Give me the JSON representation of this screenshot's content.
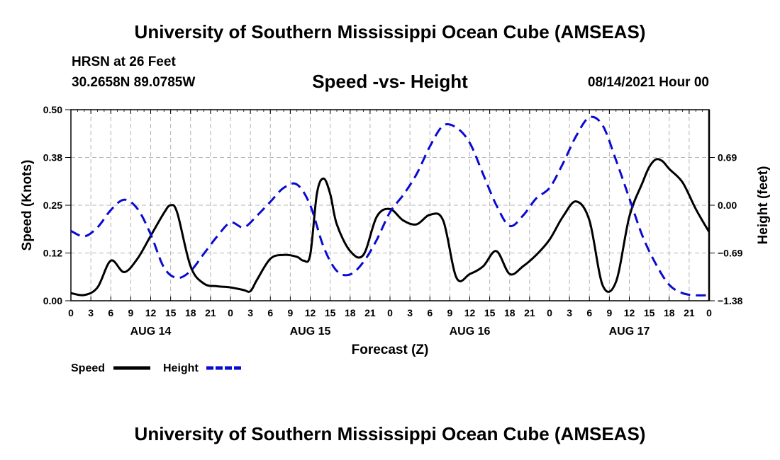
{
  "header": {
    "title": "University of Southern Mississippi Ocean Cube (AMSEAS)",
    "station": "HRSN at 26 Feet",
    "coords": "30.2658N  89.0785W",
    "subtitle": "Speed -vs- Height",
    "datestamp": "08/14/2021 Hour 00"
  },
  "footer": {
    "title": "University of Southern Mississippi Ocean Cube (AMSEAS)"
  },
  "colors": {
    "speed": "#000000",
    "height": "#0a0ad0",
    "grid": "#b4b4b4"
  },
  "chart_data": {
    "type": "line",
    "title": "Speed -vs- Height",
    "xlabel": "Forecast (Z)",
    "ylabel": "Speed (Knots)",
    "ylabel_right": "Height (feet)",
    "xlim": [
      0,
      96
    ],
    "ylim": [
      0,
      0.5
    ],
    "ylim_right": [
      -1.38,
      1.38
    ],
    "grid": true,
    "x_ticks": [
      0,
      3,
      6,
      9,
      12,
      15,
      18,
      21,
      24,
      27,
      30,
      33,
      36,
      39,
      42,
      45,
      48,
      51,
      54,
      57,
      60,
      63,
      66,
      69,
      72,
      75,
      78,
      81,
      84,
      87,
      90,
      93,
      96
    ],
    "x_tick_labels": [
      "0",
      "3",
      "6",
      "9",
      "12",
      "15",
      "18",
      "21",
      "0",
      "3",
      "6",
      "9",
      "12",
      "15",
      "18",
      "21",
      "0",
      "3",
      "6",
      "9",
      "12",
      "15",
      "18",
      "21",
      "0",
      "3",
      "6",
      "9",
      "12",
      "15",
      "18",
      "21",
      "0"
    ],
    "day_labels": [
      {
        "x": 12,
        "label": "AUG 14"
      },
      {
        "x": 36,
        "label": "AUG 15"
      },
      {
        "x": 60,
        "label": "AUG 16"
      },
      {
        "x": 84,
        "label": "AUG 17"
      }
    ],
    "y_ticks": [
      0,
      0.125,
      0.25,
      0.375,
      0.5
    ],
    "y_tick_labels": [
      "0.00",
      "0.12",
      "0.25",
      "0.38",
      "0.50"
    ],
    "y_ticks_right": [
      -1.38,
      -0.69,
      0.0,
      0.69
    ],
    "y_tick_labels_right": [
      "−1.38",
      "−0.69",
      "0.00",
      "0.69"
    ],
    "legend": [
      {
        "name": "Speed",
        "style": "solid"
      },
      {
        "name": "Height",
        "style": "dashed"
      }
    ],
    "series": [
      {
        "name": "Speed",
        "axis": "left",
        "x": [
          0,
          2,
          4,
          6,
          8,
          10,
          12,
          14,
          15,
          16,
          18,
          20,
          22,
          24,
          26,
          27,
          28,
          30,
          32,
          34,
          35,
          36,
          37,
          38,
          39,
          40,
          42,
          44,
          46,
          48,
          50,
          52,
          54,
          56,
          58,
          60,
          62,
          64,
          66,
          68,
          70,
          72,
          74,
          76,
          78,
          80,
          82,
          84,
          86,
          87,
          88,
          89,
          90,
          92,
          94,
          96
        ],
        "y": [
          0.02,
          0.015,
          0.035,
          0.105,
          0.075,
          0.11,
          0.17,
          0.23,
          0.25,
          0.23,
          0.09,
          0.045,
          0.038,
          0.035,
          0.028,
          0.025,
          0.055,
          0.11,
          0.12,
          0.115,
          0.105,
          0.12,
          0.28,
          0.32,
          0.28,
          0.2,
          0.13,
          0.12,
          0.22,
          0.24,
          0.21,
          0.2,
          0.225,
          0.21,
          0.06,
          0.07,
          0.09,
          0.13,
          0.07,
          0.09,
          0.12,
          0.16,
          0.22,
          0.26,
          0.21,
          0.04,
          0.05,
          0.22,
          0.31,
          0.35,
          0.37,
          0.365,
          0.345,
          0.31,
          0.24,
          0.18
        ]
      },
      {
        "name": "Height",
        "axis": "right",
        "x": [
          0,
          2,
          4,
          6,
          8,
          10,
          12,
          14,
          16,
          18,
          20,
          22,
          24,
          26,
          28,
          30,
          32,
          34,
          36,
          38,
          40,
          42,
          44,
          46,
          48,
          50,
          52,
          54,
          56,
          58,
          60,
          62,
          64,
          66,
          68,
          70,
          72,
          74,
          76,
          78,
          80,
          82,
          84,
          86,
          88,
          90,
          92,
          94,
          96
        ],
        "y": [
          -0.37,
          -0.45,
          -0.32,
          -0.07,
          0.08,
          -0.05,
          -0.42,
          -0.9,
          -1.05,
          -0.95,
          -0.7,
          -0.45,
          -0.25,
          -0.32,
          -0.15,
          0.05,
          0.25,
          0.3,
          0.0,
          -0.6,
          -0.95,
          -1.0,
          -0.82,
          -0.5,
          -0.1,
          0.15,
          0.45,
          0.85,
          1.15,
          1.12,
          0.9,
          0.45,
          0.0,
          -0.3,
          -0.15,
          0.1,
          0.25,
          0.6,
          1.0,
          1.27,
          1.15,
          0.65,
          0.1,
          -0.45,
          -0.85,
          -1.15,
          -1.27,
          -1.3,
          -1.3
        ]
      }
    ]
  }
}
